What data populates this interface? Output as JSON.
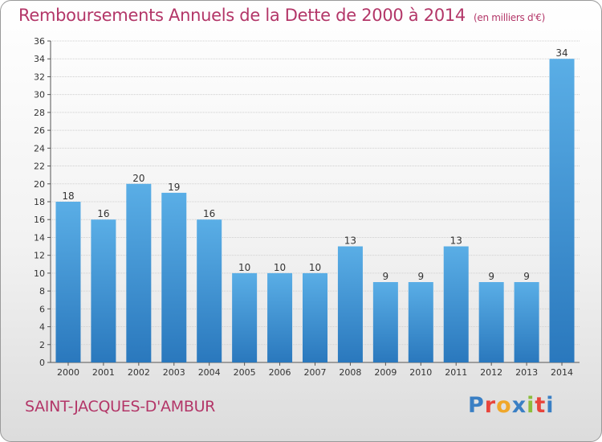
{
  "header": {
    "title": "Remboursements Annuels de la Dette de 2000 à 2014",
    "unit": "(en milliers d'€)"
  },
  "footer": {
    "commune": "SAINT-JACQUES-D'AMBUR",
    "logo": "Proxiti"
  },
  "colors": {
    "title": "#b33668",
    "bar_top": "#5aaee6",
    "bar_bottom": "#2a78bd",
    "logo": [
      "#3a7fc4",
      "#e8453c",
      "#f0a72a",
      "#3a7fc4",
      "#8cbd3c",
      "#e8453c",
      "#3a7fc4"
    ]
  },
  "chart_data": {
    "type": "bar",
    "categories": [
      "2000",
      "2001",
      "2002",
      "2003",
      "2004",
      "2005",
      "2006",
      "2007",
      "2008",
      "2009",
      "2010",
      "2011",
      "2012",
      "2013",
      "2014"
    ],
    "values": [
      18,
      16,
      20,
      19,
      16,
      10,
      10,
      10,
      13,
      9,
      9,
      13,
      9,
      9,
      34
    ],
    "ylim": [
      0,
      36
    ],
    "yticks": [
      0,
      2,
      4,
      6,
      8,
      10,
      12,
      14,
      16,
      18,
      20,
      22,
      24,
      26,
      28,
      30,
      32,
      34,
      36
    ],
    "grid": true,
    "data_labels": true
  }
}
